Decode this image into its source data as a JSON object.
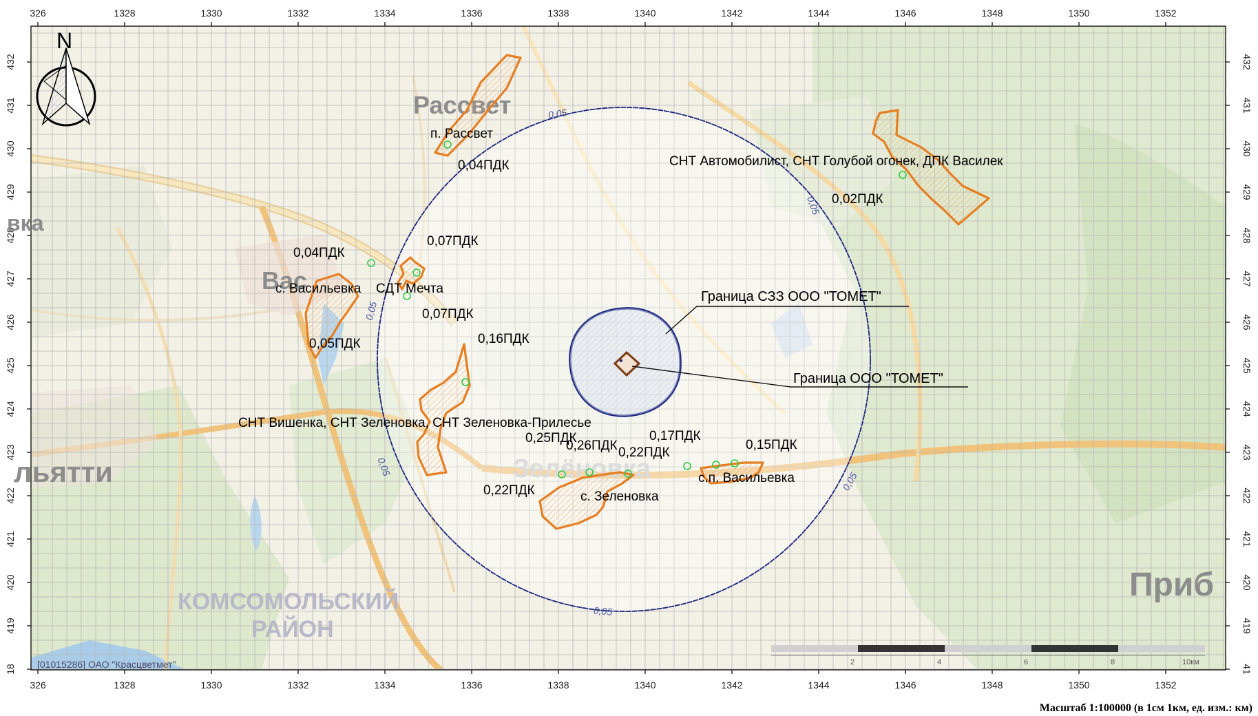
{
  "axes": {
    "x_ticks": [
      "326",
      "1328",
      "1330",
      "1332",
      "1334",
      "1336",
      "1338",
      "1340",
      "1342",
      "1344",
      "1346",
      "1348",
      "1350",
      "1352"
    ],
    "y_ticks": [
      "432",
      "431",
      "430",
      "429",
      "428",
      "427",
      "426",
      "425",
      "424",
      "423",
      "422",
      "421",
      "420",
      "419",
      "18"
    ],
    "y_ticks_right": [
      "432",
      "431",
      "430",
      "429",
      "428",
      "427",
      "426",
      "425",
      "424",
      "423",
      "422",
      "421",
      "420",
      "419",
      "41"
    ]
  },
  "basemap_labels": {
    "rassvet": "Рассвет",
    "vasilyevka_partial": "вка",
    "togliatti_partial": "льятти",
    "vasil_big": "Вас",
    "zelenovka_big": "Зелёновка",
    "komsomolsky": "КОМСОМОЛЬСКИЙ",
    "rayon": "РАЙОН",
    "prib": "Приб"
  },
  "contour_labels": {
    "top": "0,05",
    "left": "0,05",
    "left_low": "0,05",
    "right_top": "0,05",
    "right_low": "0,05",
    "bottom": "0,05"
  },
  "annotations": {
    "sz_boundary": "Граница СЗЗ ООО \"ТОМЕТ\"",
    "plant_boundary": "Граница ООО \"ТОМЕТ\""
  },
  "places": {
    "p_rassvet": "п. Рассвет",
    "snt_avto": "СНТ Автомобилист, СНТ Голубой огонек, ДПК Василек",
    "s_vasilyevka": "с. Васильевка",
    "sdt_mechta": "СДТ Мечта",
    "snt_vishenka": "СНТ Вишенка, СНТ Зеленовка, СНТ Зеленовка-Прилесье",
    "s_zelenovka": "с. Зеленовка",
    "sp_vasilyevka": "с.п. Васильевка"
  },
  "pdk_labels": {
    "rassvet": "0,04ПДК",
    "snt_avto": "0,02ПДК",
    "vasilyevka_top": "0,04ПДК",
    "mechta_top": "0,07ПДК",
    "mechta_low": "0,07ПДК",
    "vasilyevka_low": "0,05ПДК",
    "vishenka": "0,16ПДК",
    "z1": "0,25ПДК",
    "z2": "0,26ПДК",
    "z3": "0,22ПДК",
    "z4": "0,17ПДК",
    "sp_vas": "0,15ПДК",
    "z5": "0,22ПДК"
  },
  "north_arrow": "N",
  "scale_bar": {
    "ticks": [
      "2",
      "4",
      "6",
      "8",
      "10км"
    ]
  },
  "source_label": "[01015286] ОАО \"Красцветмет\"",
  "scale_caption": "Масштаб 1:100000 (в 1см 1км, ед. изм.: км)",
  "colors": {
    "contour": "#1a237e",
    "zone": "#e67e22",
    "receptor": "#2ecc40",
    "grid": "#b5b5b5"
  }
}
